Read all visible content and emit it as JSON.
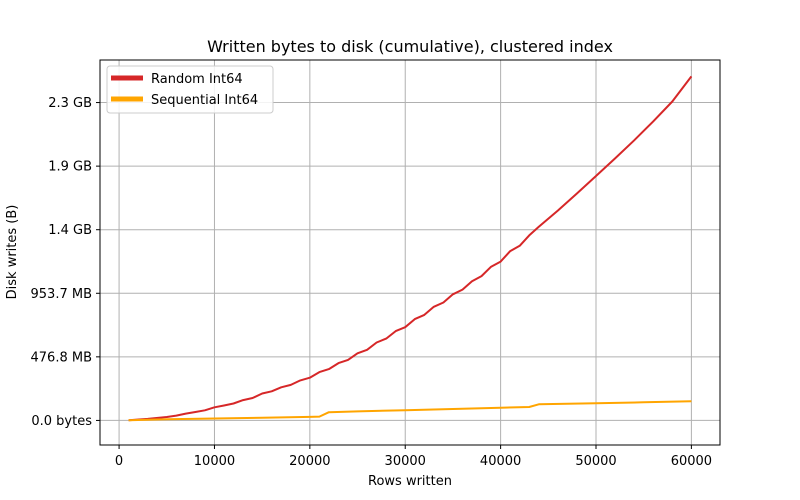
{
  "chart_data": {
    "type": "line",
    "title": "Written bytes to disk (cumulative), clustered index",
    "xlabel": "Rows written",
    "ylabel": "Disk writes (B)",
    "xlim": [
      -2000,
      63000
    ],
    "ylim": [
      -0.18,
      2.64
    ],
    "x_ticks": [
      0,
      10000,
      20000,
      30000,
      40000,
      50000,
      60000
    ],
    "x_tick_labels": [
      "0",
      "10000",
      "20000",
      "30000",
      "40000",
      "50000",
      "60000"
    ],
    "y_ticks": [
      0,
      0.4657,
      0.9313,
      1.397,
      1.8626,
      2.3283
    ],
    "y_tick_labels": [
      "0.0 bytes",
      "476.8 MB",
      "953.7 MB",
      "1.4 GB",
      "1.9 GB",
      "2.3 GB"
    ],
    "y_units": "GiB",
    "grid": true,
    "legend": "top-left",
    "series": [
      {
        "name": "Random Int64",
        "color": "#d62728",
        "x": [
          1000,
          3000,
          5000,
          6000,
          7000,
          8000,
          9000,
          10000,
          11000,
          12000,
          13000,
          14000,
          15000,
          16000,
          17000,
          18000,
          19000,
          20000,
          21000,
          22000,
          23000,
          24000,
          25000,
          26000,
          27000,
          28000,
          29000,
          30000,
          31000,
          32000,
          33000,
          34000,
          35000,
          36000,
          37000,
          38000,
          39000,
          40000,
          41000,
          42000,
          43000,
          44000,
          46000,
          48000,
          50000,
          52000,
          54000,
          56000,
          58000,
          60000
        ],
        "y": [
          0.002,
          0.011,
          0.025,
          0.035,
          0.05,
          0.062,
          0.074,
          0.096,
          0.109,
          0.124,
          0.149,
          0.164,
          0.197,
          0.213,
          0.243,
          0.26,
          0.293,
          0.313,
          0.354,
          0.376,
          0.42,
          0.443,
          0.492,
          0.517,
          0.571,
          0.599,
          0.654,
          0.683,
          0.742,
          0.773,
          0.832,
          0.864,
          0.924,
          0.958,
          1.02,
          1.057,
          1.126,
          1.163,
          1.24,
          1.279,
          1.355,
          1.418,
          1.537,
          1.662,
          1.79,
          1.919,
          2.052,
          2.19,
          2.336,
          2.52
        ]
      },
      {
        "name": "Sequential Int64",
        "color": "#ffa500",
        "x": [
          1000,
          5000,
          10000,
          15000,
          20000,
          21000,
          22000,
          25000,
          30000,
          35000,
          40000,
          43000,
          44000,
          50000,
          55000,
          60000
        ],
        "y": [
          0.002,
          0.008,
          0.014,
          0.02,
          0.026,
          0.028,
          0.06,
          0.066,
          0.075,
          0.084,
          0.093,
          0.098,
          0.118,
          0.126,
          0.133,
          0.14
        ]
      }
    ]
  }
}
